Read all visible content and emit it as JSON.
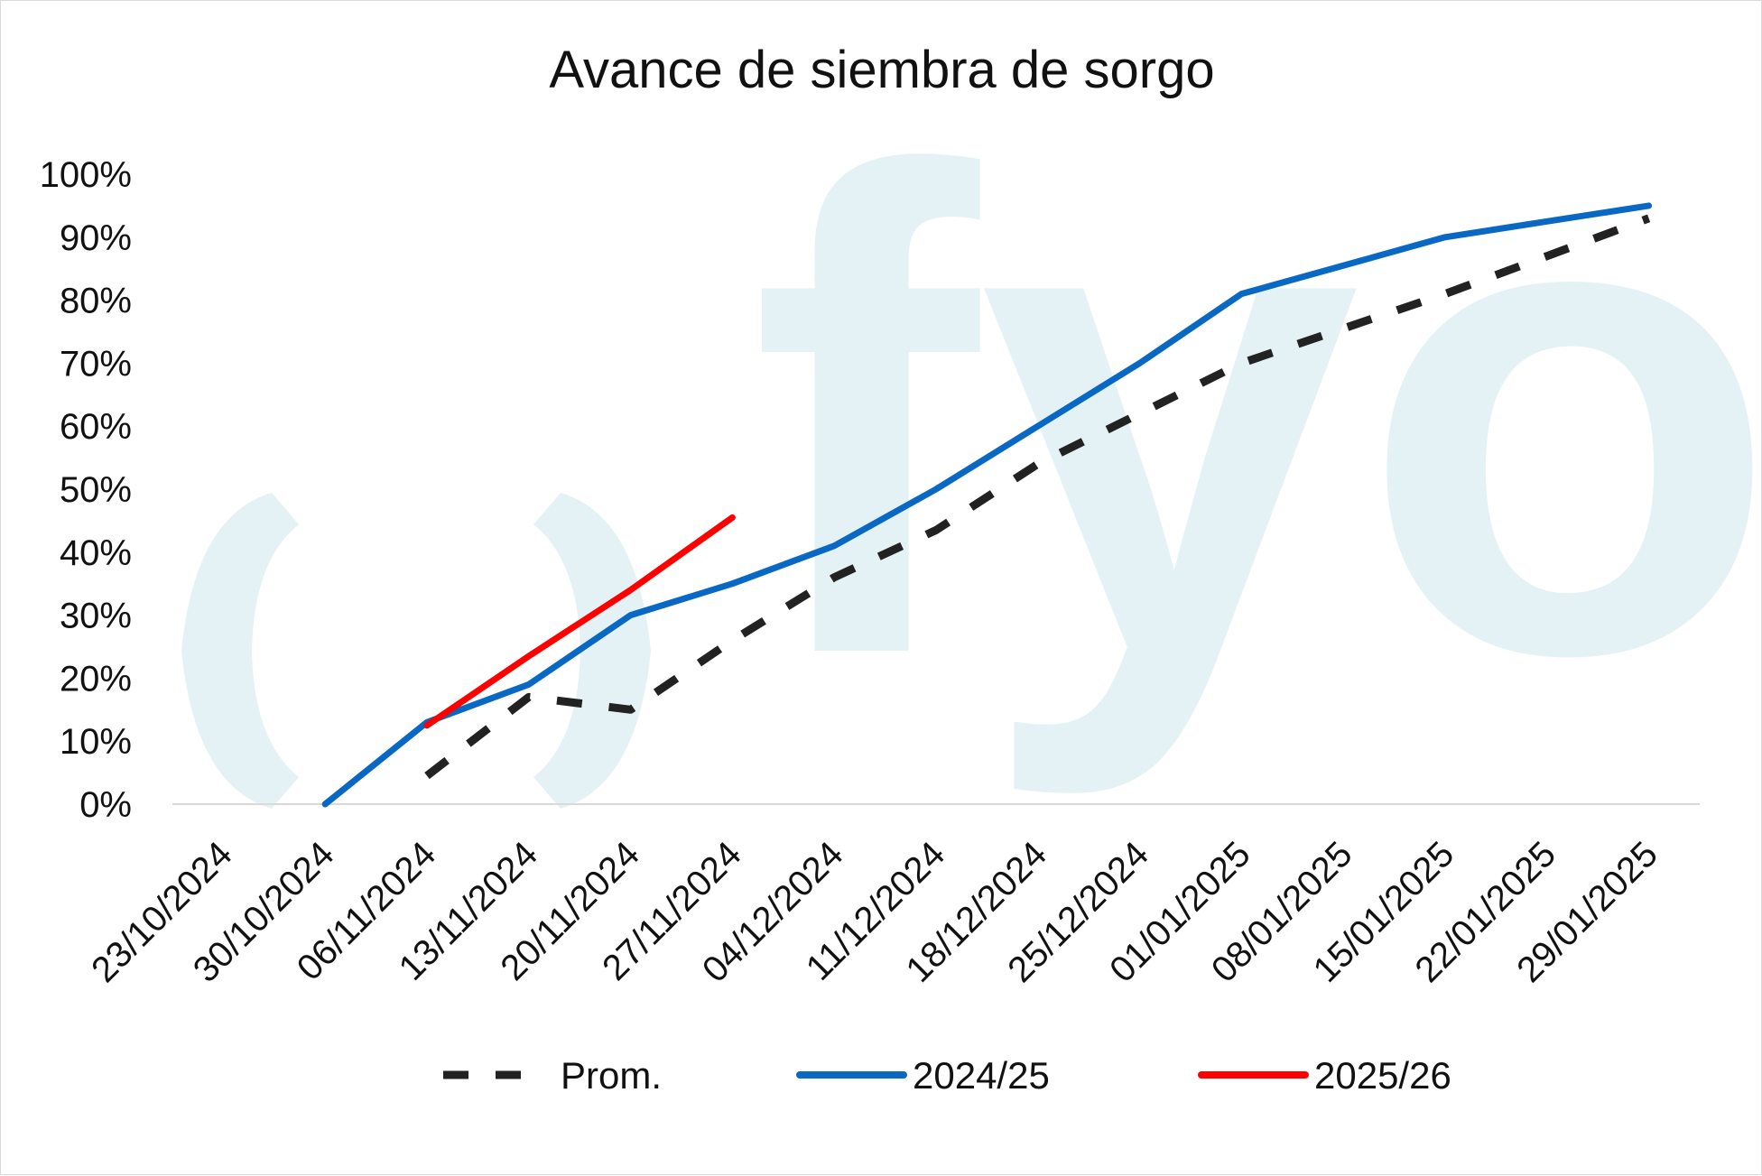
{
  "chart_data": {
    "type": "line",
    "title": "Avance de siembra de sorgo",
    "watermark": "fyo",
    "xlabel": "",
    "ylabel": "",
    "ylim": [
      0,
      100
    ],
    "yticks": [
      "0%",
      "10%",
      "20%",
      "30%",
      "40%",
      "50%",
      "60%",
      "70%",
      "80%",
      "90%",
      "100%"
    ],
    "categories": [
      "23/10/2024",
      "30/10/2024",
      "06/11/2024",
      "13/11/2024",
      "20/11/2024",
      "27/11/2024",
      "04/12/2024",
      "11/12/2024",
      "18/12/2024",
      "25/12/2024",
      "01/01/2025",
      "08/01/2025",
      "15/01/2025",
      "22/01/2025",
      "29/01/2025"
    ],
    "legend_position": "bottom",
    "grid": false,
    "series": [
      {
        "name": "Prom.",
        "color": "#222222",
        "dash": true,
        "values": [
          null,
          null,
          4.5,
          17,
          15,
          26,
          36,
          43.5,
          54,
          62,
          70,
          75.5,
          81,
          87,
          93
        ]
      },
      {
        "name": "2024/25",
        "color": "#0868c4",
        "dash": false,
        "values": [
          null,
          0,
          13,
          19,
          30,
          35,
          41,
          50,
          60,
          70,
          81,
          85.5,
          90,
          92.5,
          95
        ]
      },
      {
        "name": "2025/26",
        "color": "#ff0000",
        "dash": false,
        "values": [
          null,
          null,
          12.5,
          23.5,
          34,
          45.5,
          null,
          null,
          null,
          null,
          null,
          null,
          null,
          null,
          null
        ]
      }
    ]
  }
}
